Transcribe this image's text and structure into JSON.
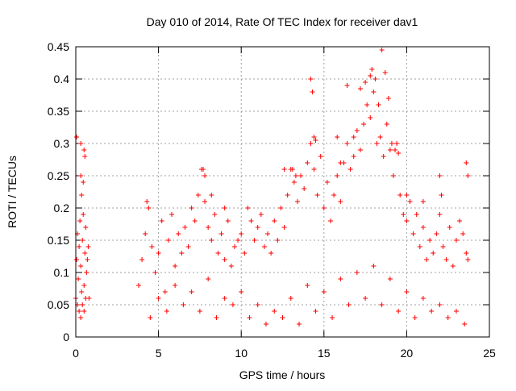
{
  "chart_data": {
    "type": "scatter",
    "title": "Day 010 of 2014, Rate Of TEC Index for receiver dav1",
    "xlabel": "GPS time / hours",
    "ylabel": "ROTI / TECUs",
    "xlim": [
      0,
      25
    ],
    "ylim": [
      0,
      0.45
    ],
    "xticks": [
      0,
      5,
      10,
      15,
      20,
      25
    ],
    "xtick_labels": [
      "0",
      "5",
      "10",
      "15",
      "20",
      "25"
    ],
    "yticks": [
      0,
      0.05,
      0.1,
      0.15,
      0.2,
      0.25,
      0.3,
      0.35,
      0.4,
      0.45
    ],
    "ytick_labels": [
      "0",
      "0.05",
      "0.1",
      "0.15",
      "0.2",
      "0.25",
      "0.3",
      "0.35",
      "0.4",
      "0.45"
    ],
    "grid": true,
    "marker": "+",
    "series": [
      {
        "name": "dav1",
        "color": "#ff0000",
        "x": [
          0.0,
          0.05,
          0.1,
          0.15,
          0.2,
          0.25,
          0.3,
          0.35,
          0.4,
          0.45,
          0.5,
          0.55,
          0.6,
          0.65,
          0.7,
          0.75,
          0.8,
          0.1,
          0.2,
          0.3,
          0.4,
          0.5,
          0.6,
          0.3,
          0.35,
          0.45,
          0.55,
          3.8,
          4.0,
          4.2,
          4.4,
          4.6,
          4.8,
          5.0,
          5.2,
          5.4,
          5.6,
          5.8,
          6.0,
          6.2,
          6.4,
          6.6,
          6.8,
          7.0,
          7.2,
          7.4,
          7.6,
          7.8,
          8.0,
          8.2,
          8.4,
          8.6,
          8.8,
          9.0,
          9.2,
          9.4,
          9.6,
          9.8,
          10.0,
          10.2,
          10.4,
          10.6,
          10.8,
          11.0,
          11.2,
          11.4,
          11.6,
          11.8,
          12.0,
          12.2,
          12.4,
          12.6,
          12.8,
          13.0,
          13.2,
          13.4,
          13.6,
          13.8,
          14.0,
          14.2,
          14.4,
          14.6,
          14.8,
          15.0,
          15.2,
          15.4,
          15.6,
          15.8,
          16.0,
          16.2,
          16.4,
          16.6,
          16.8,
          17.0,
          17.2,
          17.4,
          17.6,
          17.8,
          18.0,
          18.2,
          18.4,
          18.6,
          18.8,
          19.0,
          19.2,
          19.4,
          19.6,
          19.8,
          20.0,
          20.2,
          20.4,
          20.6,
          20.8,
          21.0,
          21.2,
          21.4,
          21.6,
          21.8,
          22.0,
          22.2,
          22.4,
          22.6,
          22.8,
          23.0,
          23.2,
          23.4,
          23.6,
          23.7,
          4.5,
          5.5,
          6.5,
          7.5,
          8.5,
          9.5,
          10.5,
          11.5,
          12.5,
          13.5,
          14.5,
          15.5,
          16.5,
          17.5,
          18.5,
          19.5,
          20.5,
          21.5,
          22.5,
          23.5,
          5.0,
          6.0,
          7.0,
          8.0,
          9.0,
          10.0,
          11.0,
          12.0,
          13.0,
          14.0,
          15.0,
          16.0,
          17.0,
          18.0,
          19.0,
          20.0,
          21.0,
          22.0,
          23.0,
          7.7,
          7.8,
          13.1,
          13.3,
          14.2,
          14.3,
          16.4,
          16.8,
          17.2,
          17.5,
          17.8,
          17.9,
          18.1,
          18.3,
          18.5,
          18.7,
          18.9,
          19.1,
          19.3,
          19.5,
          14.4,
          14.5,
          15.8,
          16.0,
          22.0,
          22.1,
          23.6,
          23.7,
          21.0,
          20.0,
          12.6,
          9.0,
          8.2,
          4.3,
          0.05,
          0.3,
          0.5
        ],
        "y": [
          0.06,
          0.12,
          0.16,
          0.09,
          0.14,
          0.18,
          0.11,
          0.07,
          0.15,
          0.19,
          0.08,
          0.13,
          0.17,
          0.1,
          0.12,
          0.14,
          0.06,
          0.05,
          0.04,
          0.03,
          0.05,
          0.04,
          0.06,
          0.25,
          0.22,
          0.24,
          0.28,
          0.08,
          0.12,
          0.16,
          0.2,
          0.14,
          0.1,
          0.13,
          0.18,
          0.07,
          0.15,
          0.19,
          0.11,
          0.16,
          0.13,
          0.17,
          0.14,
          0.2,
          0.18,
          0.22,
          0.26,
          0.21,
          0.17,
          0.15,
          0.19,
          0.13,
          0.16,
          0.12,
          0.18,
          0.11,
          0.14,
          0.15,
          0.16,
          0.13,
          0.2,
          0.18,
          0.15,
          0.17,
          0.19,
          0.14,
          0.16,
          0.13,
          0.18,
          0.15,
          0.2,
          0.17,
          0.22,
          0.26,
          0.24,
          0.21,
          0.25,
          0.23,
          0.27,
          0.3,
          0.26,
          0.22,
          0.28,
          0.2,
          0.24,
          0.18,
          0.22,
          0.25,
          0.21,
          0.27,
          0.3,
          0.26,
          0.28,
          0.32,
          0.29,
          0.33,
          0.36,
          0.34,
          0.38,
          0.3,
          0.31,
          0.28,
          0.33,
          0.29,
          0.25,
          0.3,
          0.22,
          0.19,
          0.18,
          0.21,
          0.16,
          0.19,
          0.14,
          0.17,
          0.12,
          0.15,
          0.13,
          0.16,
          0.19,
          0.14,
          0.12,
          0.17,
          0.11,
          0.15,
          0.18,
          0.16,
          0.13,
          0.12,
          0.03,
          0.04,
          0.05,
          0.04,
          0.03,
          0.05,
          0.03,
          0.02,
          0.03,
          0.02,
          0.04,
          0.03,
          0.05,
          0.06,
          0.05,
          0.04,
          0.03,
          0.04,
          0.03,
          0.02,
          0.06,
          0.08,
          0.07,
          0.09,
          0.06,
          0.07,
          0.05,
          0.04,
          0.06,
          0.08,
          0.07,
          0.09,
          0.1,
          0.11,
          0.09,
          0.07,
          0.06,
          0.05,
          0.04,
          0.26,
          0.25,
          0.26,
          0.25,
          0.4,
          0.38,
          0.39,
          0.31,
          0.385,
          0.395,
          0.405,
          0.415,
          0.4,
          0.36,
          0.445,
          0.41,
          0.37,
          0.3,
          0.29,
          0.285,
          0.31,
          0.305,
          0.31,
          0.27,
          0.25,
          0.22,
          0.27,
          0.25,
          0.21,
          0.22,
          0.26,
          0.2,
          0.22,
          0.21,
          0.31,
          0.3,
          0.29
        ]
      }
    ]
  }
}
